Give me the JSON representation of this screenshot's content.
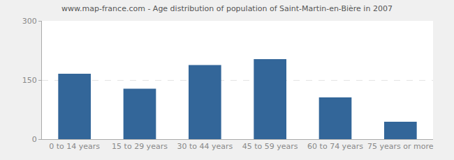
{
  "chart_data": {
    "type": "bar",
    "title": "www.map-france.com - Age distribution of population of Saint-Martin-en-Bière in 2007",
    "categories": [
      "0 to 14 years",
      "15 to 29 years",
      "30 to 44 years",
      "45 to 59 years",
      "60 to 74 years",
      "75 years or more"
    ],
    "values": [
      166,
      128,
      188,
      203,
      106,
      44
    ],
    "color": "#336699",
    "ylim": [
      0,
      300
    ],
    "yticks": [
      0,
      150,
      300
    ],
    "grid": true
  }
}
